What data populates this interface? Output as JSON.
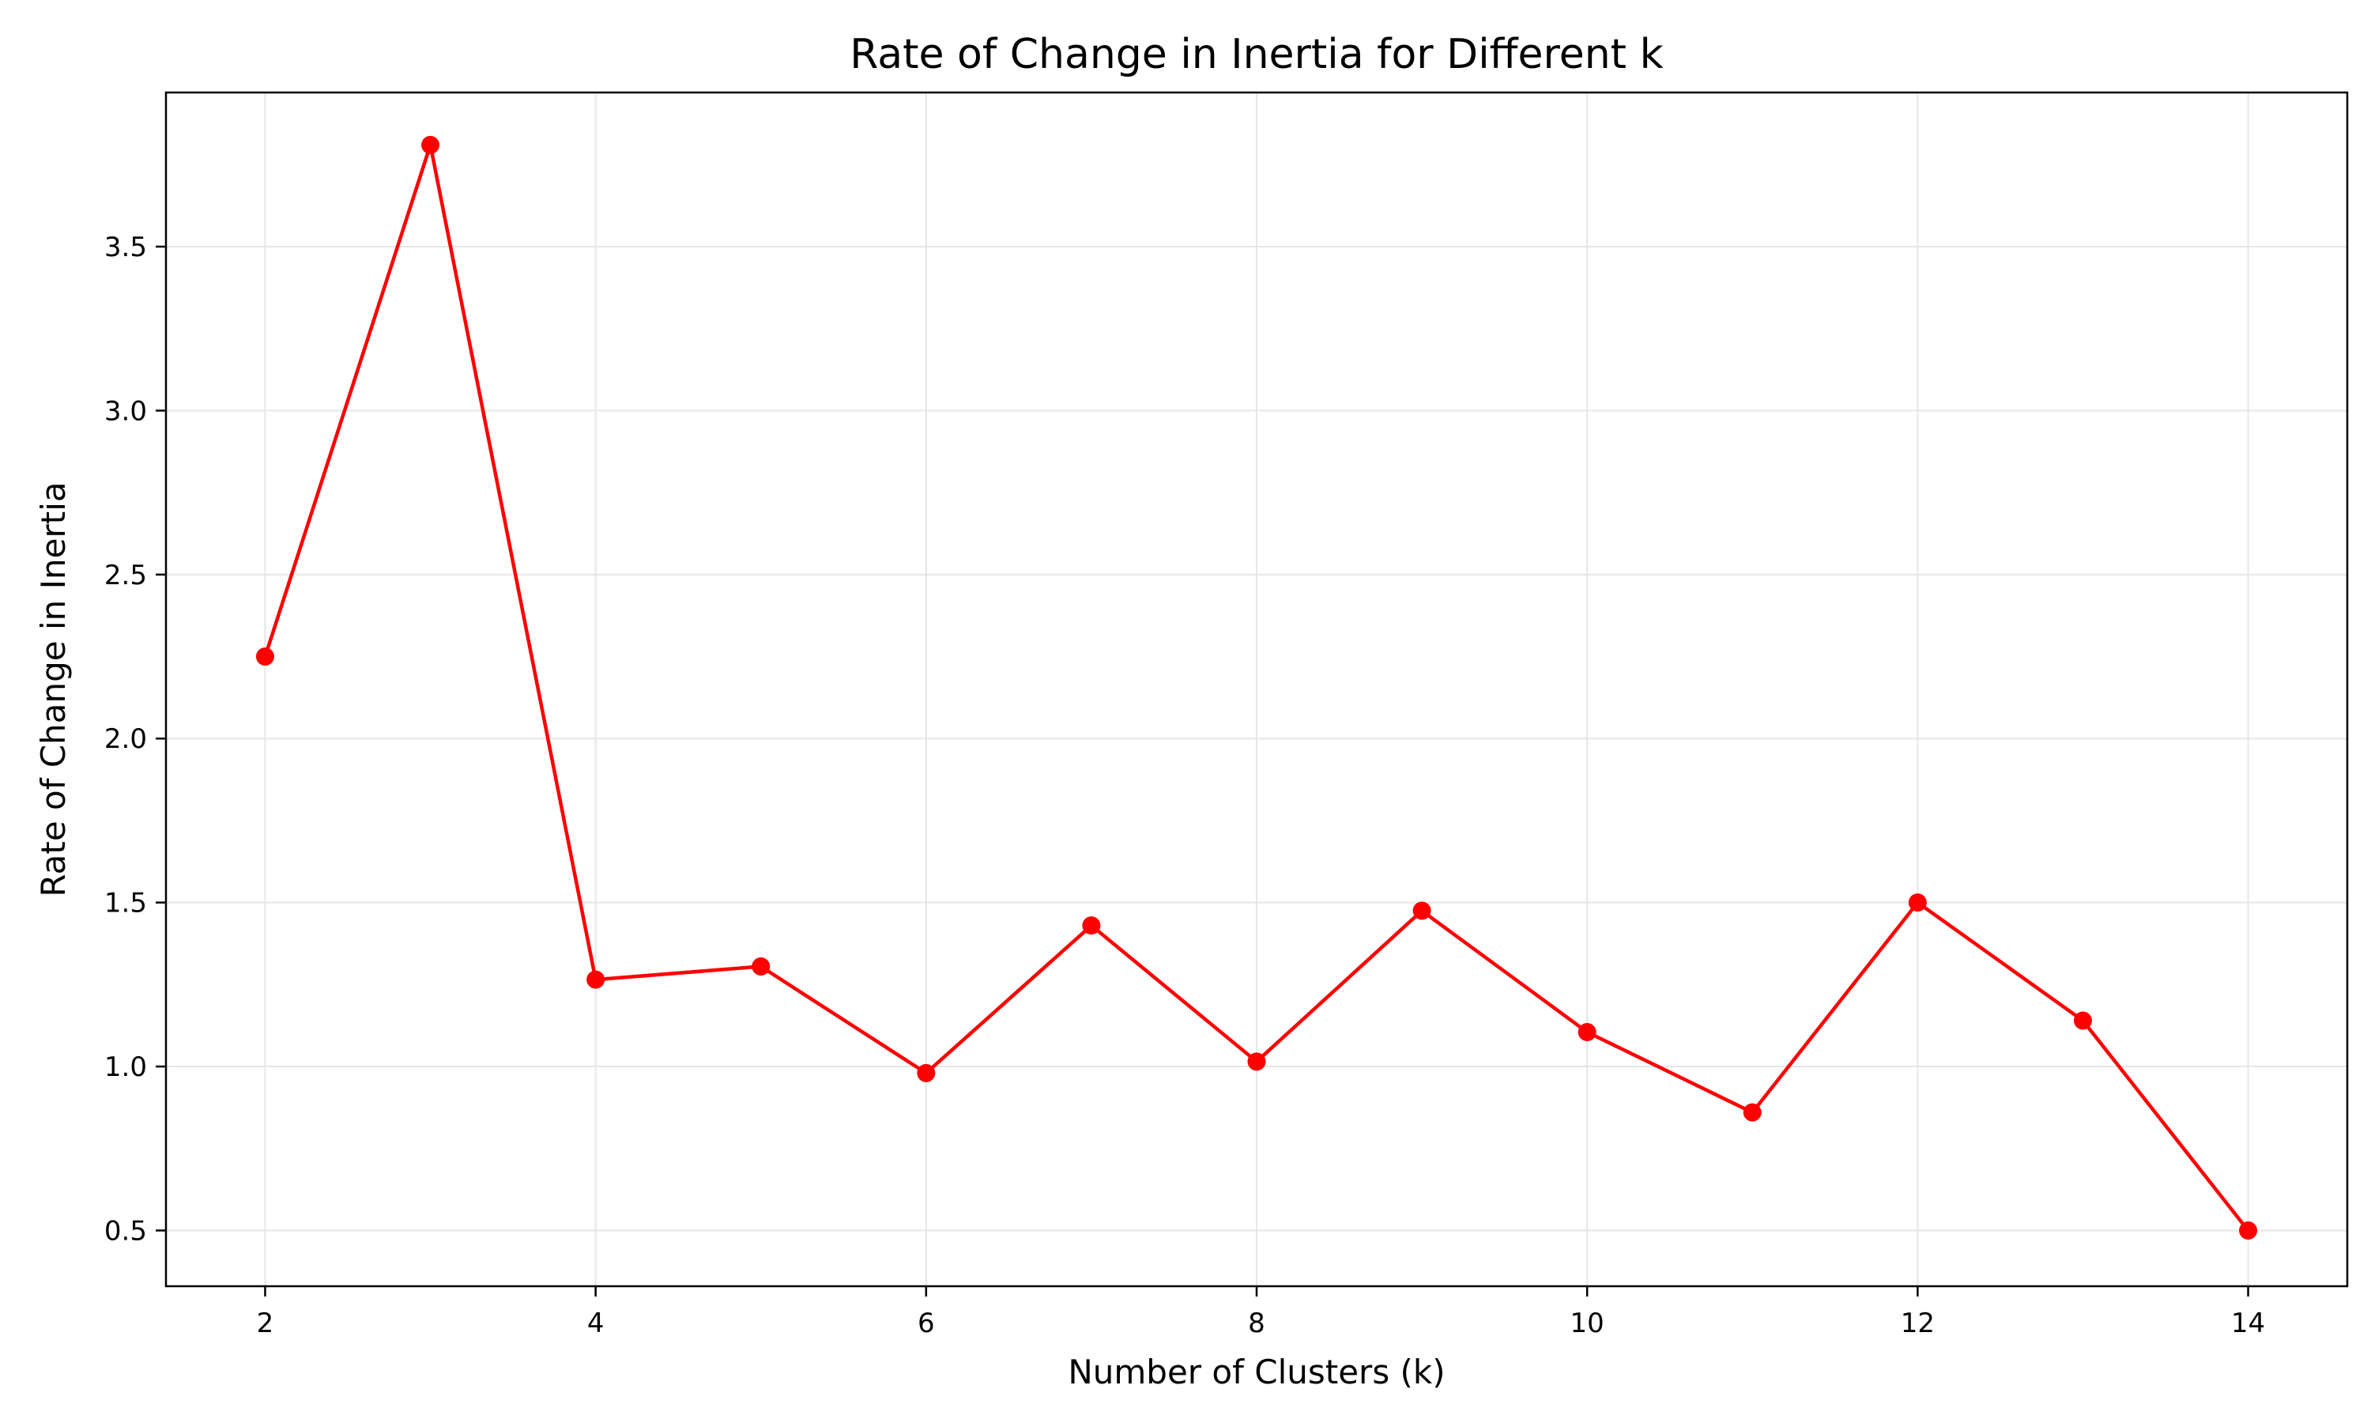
{
  "chart_data": {
    "type": "line",
    "title": "Rate of Change in Inertia for Different k",
    "xlabel": "Number of Clusters (k)",
    "ylabel": "Rate of Change in Inertia",
    "xlim": [
      1.4,
      14.6
    ],
    "ylim": [
      0.33,
      3.97
    ],
    "xticks": [
      2,
      4,
      6,
      8,
      10,
      12,
      14
    ],
    "xtick_labels": [
      "2",
      "4",
      "6",
      "8",
      "10",
      "12",
      "14"
    ],
    "yticks": [
      0.5,
      1.0,
      1.5,
      2.0,
      2.5,
      3.0,
      3.5
    ],
    "ytick_labels": [
      "0.5",
      "1.0",
      "1.5",
      "2.0",
      "2.5",
      "3.0",
      "3.5"
    ],
    "grid": true,
    "legend": false,
    "series": [
      {
        "color": "#ff0000",
        "marker": "circle",
        "x": [
          2,
          3,
          4,
          5,
          6,
          7,
          8,
          9,
          10,
          11,
          12,
          13,
          14
        ],
        "y": [
          2.25,
          3.81,
          1.265,
          1.305,
          0.98,
          1.43,
          1.015,
          1.475,
          1.105,
          0.86,
          1.5,
          1.14,
          0.5
        ]
      }
    ],
    "colors": {
      "line": "#ff0000",
      "grid": "#e6e6e6",
      "axes": "#000000",
      "background": "#ffffff"
    }
  }
}
